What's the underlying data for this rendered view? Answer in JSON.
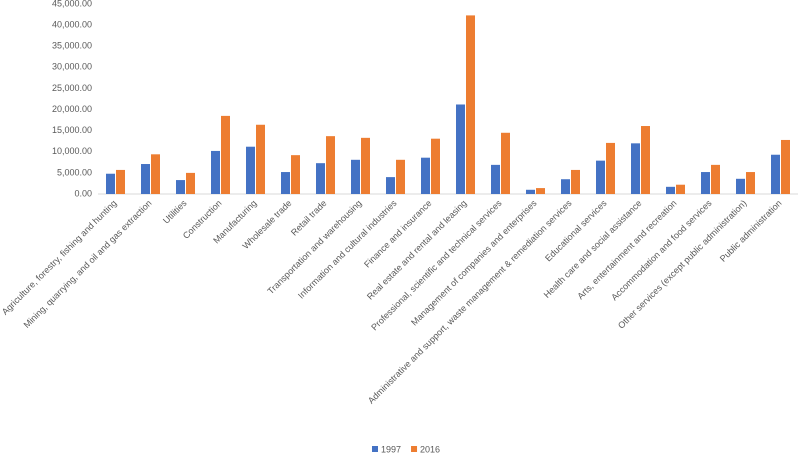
{
  "chart_data": {
    "type": "bar",
    "categories": [
      "Agriculture, forestry, fishing and hunting",
      "Mining, quarrying, and oil and gas extraction",
      "Utilities",
      "Construction",
      "Manufacturing",
      "Wholesale trade",
      "Retail trade",
      "Transportation and warehousing",
      "Information and cultural industries",
      "Finance and insurance",
      "Real estate and rental and leasing",
      "Professional, scientific and technical services",
      "Management of companies and enterprises",
      "Administrative and support, waste management & remediation services",
      "Educational services",
      "Health care and social assistance",
      "Arts, entertainment and recreation",
      "Accommodation and food services",
      "Other services (except public administration)",
      "Public administration"
    ],
    "series": [
      {
        "name": "1997",
        "color": "#4472c4",
        "values": [
          4800,
          7100,
          3300,
          10200,
          11200,
          5200,
          7300,
          8100,
          4000,
          8600,
          21200,
          6900,
          1000,
          3500,
          7900,
          12000,
          1700,
          5200,
          3600,
          9300
        ]
      },
      {
        "name": "2016",
        "color": "#ed7d31",
        "values": [
          5700,
          9400,
          5000,
          18500,
          16400,
          9200,
          13700,
          13300,
          8100,
          13100,
          42300,
          14500,
          1400,
          5700,
          12100,
          16100,
          2200,
          6900,
          5200,
          12800
        ]
      }
    ],
    "ylim": [
      0,
      45000
    ],
    "yticks": [
      {
        "value": 0,
        "label": "0.00"
      },
      {
        "value": 5000,
        "label": "5,000.00"
      },
      {
        "value": 10000,
        "label": "10,000.00"
      },
      {
        "value": 15000,
        "label": "15,000.00"
      },
      {
        "value": 20000,
        "label": "20,000.00"
      },
      {
        "value": 25000,
        "label": "25,000.00"
      },
      {
        "value": 30000,
        "label": "30,000.00"
      },
      {
        "value": 35000,
        "label": "35,000.00"
      },
      {
        "value": 40000,
        "label": "40,000.00"
      },
      {
        "value": 45000,
        "label": "45,000.00"
      }
    ],
    "grid": false,
    "legend": "bottom"
  }
}
